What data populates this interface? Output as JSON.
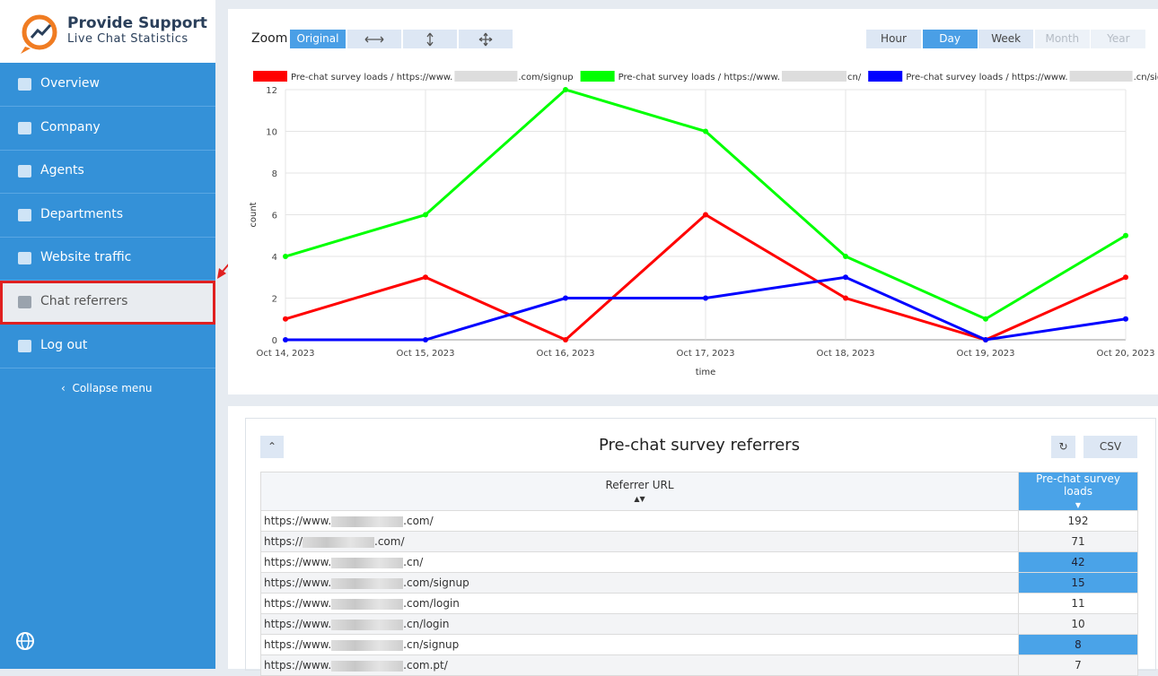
{
  "sidebar": {
    "brand": "Provide Support",
    "subtitle": "Live Chat Statistics",
    "menu": [
      "Overview",
      "Company",
      "Agents",
      "Departments",
      "Website traffic",
      "Chat referrers",
      "Log out"
    ],
    "selected": 5,
    "collapse": "Collapse menu"
  },
  "toolbar": {
    "zoom_label": "Zoom",
    "zoom_original": "Original",
    "periods": [
      "Hour",
      "Day",
      "Week",
      "Month",
      "Year"
    ],
    "active_period": 1,
    "disabled_periods": [
      3,
      4
    ]
  },
  "chart_data": {
    "type": "line",
    "categories": [
      "Oct 14, 2023",
      "Oct 15, 2023",
      "Oct 16, 2023",
      "Oct 17, 2023",
      "Oct 18, 2023",
      "Oct 19, 2023",
      "Oct 20, 2023"
    ],
    "series": [
      {
        "name": "Pre-chat survey loads / https://www.",
        "name_suffix": ".com/signup",
        "color": "#ff0000",
        "values": [
          1,
          3,
          0,
          6,
          2,
          0,
          3
        ]
      },
      {
        "name": "Pre-chat survey loads / https://www.",
        "name_suffix": "cn/",
        "color": "#00ff00",
        "values": [
          4,
          6,
          12,
          10,
          4,
          1,
          5
        ]
      },
      {
        "name": "Pre-chat survey loads / https://www.",
        "name_suffix": ".cn/signup",
        "color": "#0000ff",
        "values": [
          0,
          0,
          2,
          2,
          3,
          0,
          1
        ]
      }
    ],
    "ylim": [
      0,
      12
    ],
    "yticks": [
      0,
      2,
      4,
      6,
      8,
      10,
      12
    ],
    "xlabel": "time",
    "ylabel": "count",
    "grid": true
  },
  "table": {
    "title": "Pre-chat survey referrers",
    "csv": "CSV",
    "columns": [
      "Referrer URL",
      "Pre-chat survey loads"
    ],
    "rows": [
      {
        "prefix": "https://www.",
        "suffix": ".com/",
        "loads": 192,
        "highlight": false
      },
      {
        "prefix": "https://",
        "suffix": ".com/",
        "loads": 71,
        "highlight": false
      },
      {
        "prefix": "https://www.",
        "suffix": ".cn/",
        "loads": 42,
        "highlight": true
      },
      {
        "prefix": "https://www.",
        "suffix": ".com/signup",
        "loads": 15,
        "highlight": true
      },
      {
        "prefix": "https://www.",
        "suffix": ".com/login",
        "loads": 11,
        "highlight": false
      },
      {
        "prefix": "https://www.",
        "suffix": ".cn/login",
        "loads": 10,
        "highlight": false
      },
      {
        "prefix": "https://www.",
        "suffix": ".cn/signup",
        "loads": 8,
        "highlight": true
      },
      {
        "prefix": "https://www.",
        "suffix": ".com.pt/",
        "loads": 7,
        "highlight": false
      }
    ]
  }
}
